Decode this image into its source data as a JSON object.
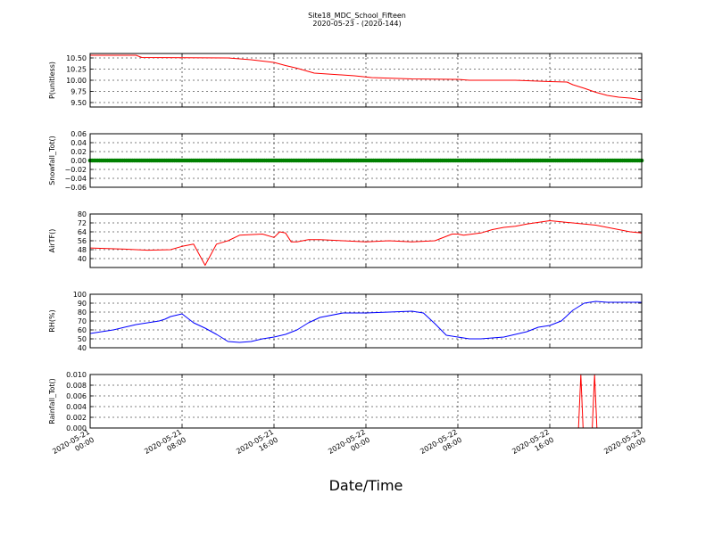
{
  "figure": {
    "title_line1": "Site18_MDC_School_Fifteen",
    "title_line2": "2020-05-23 - (2020-144)",
    "xlabel": "Date/Time"
  },
  "chart_data": [
    {
      "type": "line",
      "ylabel": "P(unitless)",
      "ylim": [
        9.4,
        10.6
      ],
      "yticks": [
        9.5,
        9.75,
        10.0,
        10.25,
        10.5
      ],
      "ytick_labels": [
        "9.50",
        "9.75",
        "10.00",
        "10.25",
        "10.50"
      ],
      "color": "#ff0000",
      "grid": true,
      "x_hours": [
        0,
        4,
        4.5,
        12,
        13,
        14,
        16,
        17,
        18,
        19.5,
        23,
        24.5,
        28,
        32,
        33,
        34,
        37,
        40,
        41.5,
        42,
        43,
        44,
        45,
        46,
        47,
        48
      ],
      "values": [
        10.56,
        10.56,
        10.51,
        10.5,
        10.48,
        10.46,
        10.4,
        10.33,
        10.27,
        10.16,
        10.1,
        10.06,
        10.03,
        10.02,
        10.0,
        10.0,
        10.0,
        9.97,
        9.96,
        9.9,
        9.82,
        9.73,
        9.66,
        9.62,
        9.6,
        9.56
      ]
    },
    {
      "type": "scatter",
      "ylabel": "Snowfall_Tot()",
      "ylim": [
        -0.06,
        0.06
      ],
      "yticks": [
        -0.06,
        -0.04,
        -0.02,
        0.0,
        0.02,
        0.04,
        0.06
      ],
      "ytick_labels": [
        "−0.06",
        "−0.04",
        "−0.02",
        "0.00",
        "0.02",
        "0.04",
        "0.06"
      ],
      "color": "#008000",
      "grid": true,
      "x_start_hours": 0,
      "x_end_hours": 48,
      "value": 0.0
    },
    {
      "type": "line",
      "ylabel": "AirTF()",
      "ylim": [
        32,
        80
      ],
      "yticks": [
        40,
        48,
        56,
        64,
        72,
        80
      ],
      "ytick_labels": [
        "40",
        "48",
        "56",
        "64",
        "72",
        "80"
      ],
      "color": "#ff0000",
      "grid": true,
      "x_hours": [
        0,
        3,
        5,
        7,
        8,
        9,
        10,
        11,
        12,
        13,
        15,
        16,
        16.5,
        17,
        17.5,
        18,
        19,
        20,
        22,
        24,
        26,
        28,
        30,
        31.5,
        32,
        32.5,
        34,
        35,
        36,
        37,
        38,
        40,
        41,
        42,
        43,
        44,
        45,
        46,
        47,
        48
      ],
      "values": [
        49.5,
        48.5,
        47.5,
        48,
        51,
        53,
        34,
        53,
        56,
        61,
        62,
        59,
        64,
        63,
        55,
        55,
        57,
        57,
        56,
        55,
        56,
        55,
        56,
        62,
        62,
        61,
        63,
        66,
        68,
        69,
        71,
        74,
        73,
        72,
        71,
        70,
        68,
        66,
        64,
        63
      ]
    },
    {
      "type": "line",
      "ylabel": "RH(%)",
      "ylim": [
        40,
        100
      ],
      "yticks": [
        40,
        50,
        60,
        70,
        80,
        90,
        100
      ],
      "ytick_labels": [
        "40",
        "50",
        "60",
        "70",
        "80",
        "90",
        "100"
      ],
      "color": "#0000ff",
      "grid": true,
      "x_hours": [
        0,
        1,
        2,
        3,
        4,
        5,
        6,
        6.5,
        7,
        8,
        9,
        10,
        11,
        11.5,
        12,
        13,
        14,
        15,
        16,
        17,
        18,
        19,
        20,
        22,
        24,
        26,
        28,
        29,
        30,
        31,
        32,
        33,
        34,
        35,
        36,
        37,
        38,
        39,
        40,
        41,
        42,
        43,
        44,
        45,
        46,
        47,
        48
      ],
      "values": [
        56,
        58,
        60,
        63,
        66,
        68,
        70,
        72,
        75,
        78,
        68,
        62,
        55,
        51,
        47,
        46,
        47,
        50,
        52,
        55,
        60,
        68,
        74,
        79,
        79,
        80,
        81,
        79,
        67,
        54,
        52,
        50,
        50,
        51,
        52,
        55,
        58,
        63,
        65,
        70,
        82,
        90,
        92,
        91,
        91,
        91,
        91
      ]
    },
    {
      "type": "line",
      "ylabel": "Rainfall_Tot()",
      "ylim": [
        0,
        0.01
      ],
      "yticks": [
        0.0,
        0.002,
        0.004,
        0.006,
        0.008,
        0.01
      ],
      "ytick_labels": [
        "0.000",
        "0.002",
        "0.004",
        "0.006",
        "0.008",
        "0.010"
      ],
      "color": "#ff0000",
      "grid": true,
      "x_hours": [
        0,
        42.5,
        42.7,
        42.9,
        43.7,
        43.9,
        44.1,
        48
      ],
      "values": [
        0,
        0,
        0.01,
        0,
        0,
        0.01,
        0,
        0
      ]
    }
  ],
  "x_axis": {
    "ticks": [
      {
        "line1": "2020-05-21",
        "line2": "00:00"
      },
      {
        "line1": "2020-05-21",
        "line2": "08:00"
      },
      {
        "line1": "2020-05-21",
        "line2": "16:00"
      },
      {
        "line1": "2020-05-22",
        "line2": "00:00"
      },
      {
        "line1": "2020-05-22",
        "line2": "08:00"
      },
      {
        "line1": "2020-05-22",
        "line2": "16:00"
      },
      {
        "line1": "2020-05-23",
        "line2": "00:00"
      }
    ]
  }
}
